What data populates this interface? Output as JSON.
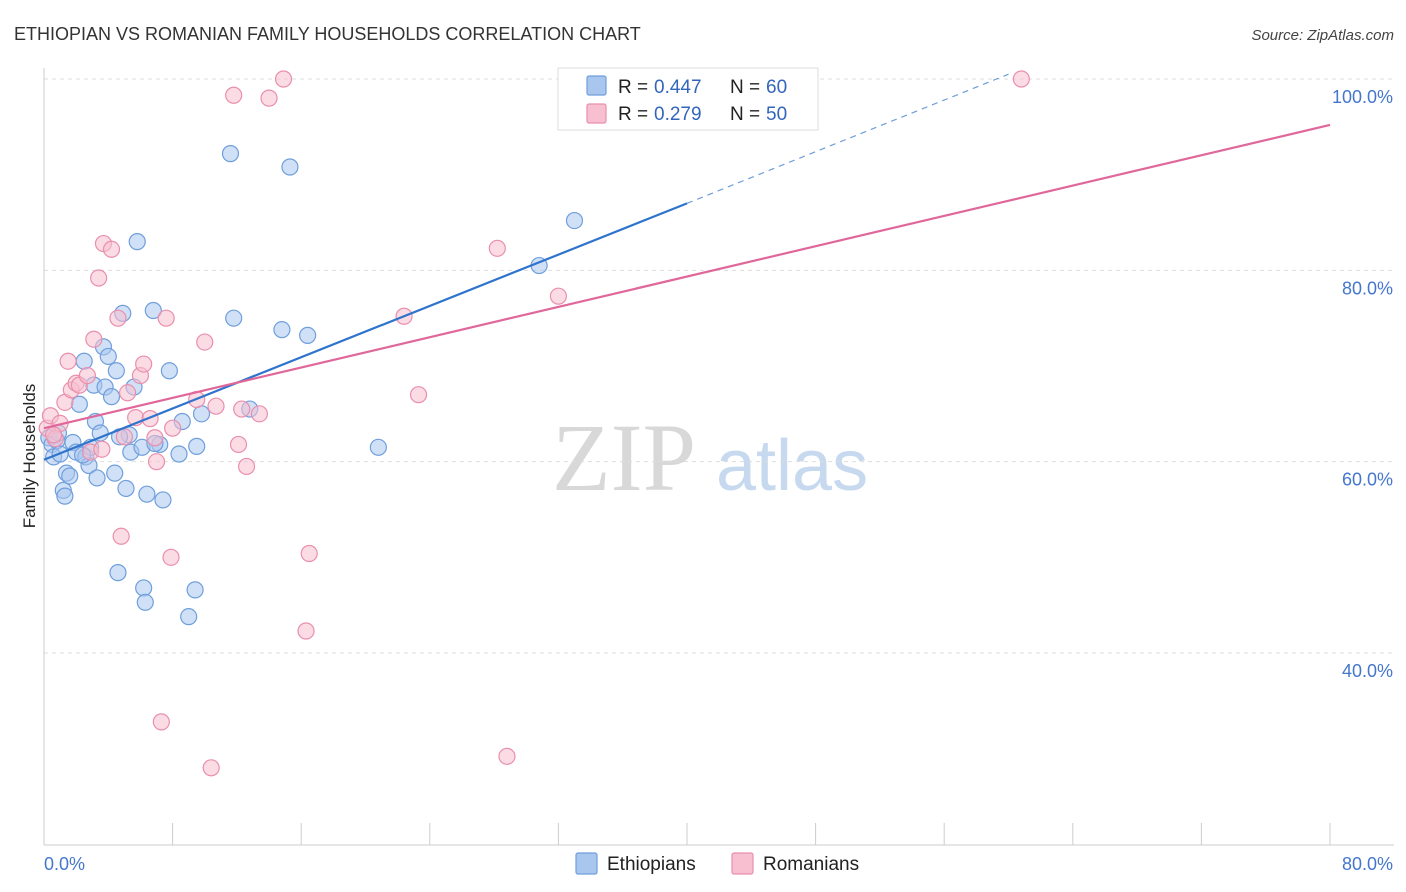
{
  "chart_data": {
    "type": "scatter",
    "title": "ETHIOPIAN VS ROMANIAN FAMILY HOUSEHOLDS CORRELATION CHART",
    "source": "Source: ZipAtlas.com",
    "ylabel": "Family Households",
    "xlabel": "",
    "xlim": [
      0,
      80
    ],
    "ylim": [
      20,
      102
    ],
    "x_tick_labels": [
      "0.0%",
      "80.0%"
    ],
    "y_ticks": [
      {
        "value": 100,
        "label": "100.0%"
      },
      {
        "value": 80,
        "label": "80.0%"
      },
      {
        "value": 60,
        "label": "60.0%"
      },
      {
        "value": 40,
        "label": "40.0%"
      }
    ],
    "grid": true,
    "legend_position": "top-center",
    "watermark": {
      "zip": "ZIP",
      "atlas": "atlas"
    },
    "colors": {
      "ethiopians_fill": "#a9c6ee",
      "ethiopians_stroke": "#6f9fdc",
      "ethiopians_line": "#2f74cc",
      "romanians_fill": "#f7bfd0",
      "romanians_stroke": "#e98fae",
      "romanians_line": "#e0679a",
      "grid": "#dddddd",
      "axis_tick_text": "#4477cc"
    },
    "series": [
      {
        "name": "Ethiopians",
        "legend_label": "Ethiopians",
        "r_label": "R =",
        "r_value": "0.447",
        "n_label": "N =",
        "n_value": "60",
        "trend": {
          "x0": 0,
          "y0": 60.2,
          "x1": 40,
          "y1": 87.0,
          "dash_x1": 60,
          "dash_y1": 100.5
        },
        "points": [
          [
            0.3,
            62.5
          ],
          [
            0.5,
            61.8
          ],
          [
            0.6,
            60.5
          ],
          [
            0.8,
            62.2
          ],
          [
            1.0,
            60.8
          ],
          [
            1.2,
            57.0
          ],
          [
            1.3,
            56.4
          ],
          [
            1.4,
            58.8
          ],
          [
            1.6,
            58.5
          ],
          [
            1.8,
            62.0
          ],
          [
            2.0,
            61.0
          ],
          [
            2.2,
            66.0
          ],
          [
            2.5,
            70.5
          ],
          [
            2.6,
            60.5
          ],
          [
            2.8,
            59.6
          ],
          [
            2.9,
            61.5
          ],
          [
            3.1,
            68.0
          ],
          [
            3.2,
            64.2
          ],
          [
            3.3,
            58.3
          ],
          [
            3.5,
            63.0
          ],
          [
            3.7,
            72.0
          ],
          [
            3.8,
            67.8
          ],
          [
            4.0,
            71.0
          ],
          [
            4.2,
            66.8
          ],
          [
            4.4,
            58.8
          ],
          [
            4.5,
            69.5
          ],
          [
            4.6,
            48.4
          ],
          [
            4.9,
            75.5
          ],
          [
            5.1,
            57.2
          ],
          [
            5.3,
            62.8
          ],
          [
            5.4,
            61.0
          ],
          [
            5.6,
            67.8
          ],
          [
            5.8,
            83.0
          ],
          [
            6.1,
            61.5
          ],
          [
            6.2,
            46.8
          ],
          [
            6.3,
            45.3
          ],
          [
            6.4,
            56.6
          ],
          [
            6.8,
            75.8
          ],
          [
            7.2,
            61.8
          ],
          [
            7.4,
            56.0
          ],
          [
            7.8,
            69.5
          ],
          [
            8.4,
            60.8
          ],
          [
            8.6,
            64.2
          ],
          [
            9.0,
            43.8
          ],
          [
            9.4,
            46.6
          ],
          [
            9.5,
            61.6
          ],
          [
            9.8,
            65.0
          ],
          [
            11.6,
            92.2
          ],
          [
            11.8,
            75.0
          ],
          [
            12.8,
            65.5
          ],
          [
            14.8,
            73.8
          ],
          [
            15.3,
            90.8
          ],
          [
            16.4,
            73.2
          ],
          [
            20.8,
            61.5
          ],
          [
            30.8,
            80.5
          ],
          [
            33.0,
            85.2
          ],
          [
            0.9,
            63.0
          ],
          [
            2.4,
            60.7
          ],
          [
            4.7,
            62.6
          ],
          [
            6.9,
            61.9
          ]
        ]
      },
      {
        "name": "Romanians",
        "legend_label": "Romanians",
        "r_label": "R =",
        "r_value": "0.279",
        "n_label": "N =",
        "n_value": "50",
        "trend": {
          "x0": 0,
          "y0": 63.5,
          "x1": 80,
          "y1": 95.2
        },
        "points": [
          [
            0.2,
            63.5
          ],
          [
            0.4,
            64.8
          ],
          [
            0.7,
            62.4
          ],
          [
            1.0,
            64.0
          ],
          [
            1.3,
            66.2
          ],
          [
            1.5,
            70.5
          ],
          [
            1.7,
            67.5
          ],
          [
            2.0,
            68.2
          ],
          [
            2.2,
            68.0
          ],
          [
            2.7,
            69.0
          ],
          [
            2.9,
            61.0
          ],
          [
            3.1,
            72.8
          ],
          [
            3.4,
            79.2
          ],
          [
            3.7,
            82.8
          ],
          [
            4.2,
            82.2
          ],
          [
            4.6,
            75.0
          ],
          [
            4.8,
            52.2
          ],
          [
            5.0,
            62.6
          ],
          [
            5.2,
            67.2
          ],
          [
            5.7,
            64.6
          ],
          [
            6.0,
            69.0
          ],
          [
            6.2,
            70.2
          ],
          [
            6.6,
            64.5
          ],
          [
            6.9,
            62.5
          ],
          [
            7.0,
            60.0
          ],
          [
            7.3,
            32.8
          ],
          [
            7.6,
            75.0
          ],
          [
            7.9,
            50.0
          ],
          [
            8.0,
            63.5
          ],
          [
            9.5,
            66.5
          ],
          [
            10.0,
            72.5
          ],
          [
            10.4,
            28.0
          ],
          [
            10.7,
            65.8
          ],
          [
            11.8,
            98.3
          ],
          [
            12.1,
            61.8
          ],
          [
            12.3,
            65.5
          ],
          [
            12.6,
            59.5
          ],
          [
            13.4,
            65.0
          ],
          [
            14.0,
            98.0
          ],
          [
            14.9,
            100.0
          ],
          [
            16.5,
            50.4
          ],
          [
            16.3,
            42.3
          ],
          [
            22.4,
            75.2
          ],
          [
            23.3,
            67.0
          ],
          [
            28.2,
            82.3
          ],
          [
            28.8,
            29.2
          ],
          [
            32.0,
            77.3
          ],
          [
            60.8,
            100.0
          ],
          [
            0.6,
            62.8
          ],
          [
            3.6,
            61.3
          ]
        ]
      }
    ]
  }
}
